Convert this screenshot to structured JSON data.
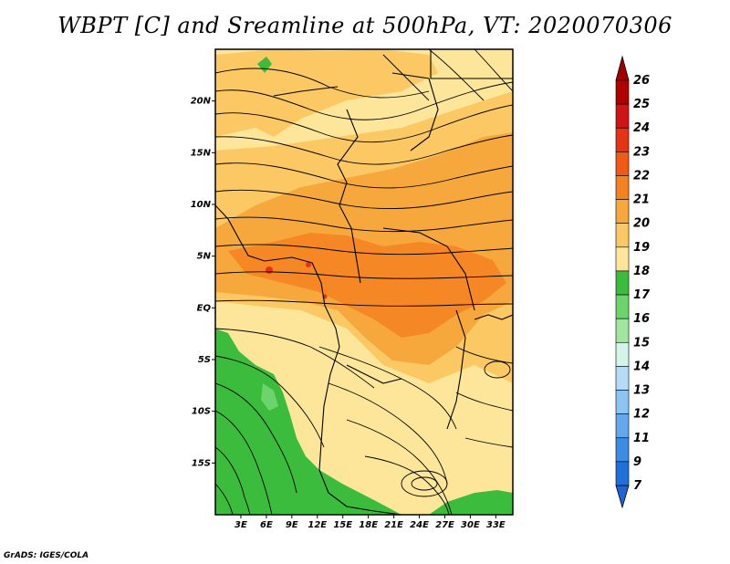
{
  "title": "WBPT [C] and Sreamline at 500hPa, VT: 2020070306",
  "credit": "GrADS: IGES/COLA",
  "map": {
    "lon_range": [
      0,
      35
    ],
    "lat_range": [
      -20,
      25
    ],
    "lat_ticks": [
      {
        "value": 20,
        "label": "20N"
      },
      {
        "value": 15,
        "label": "15N"
      },
      {
        "value": 10,
        "label": "10N"
      },
      {
        "value": 5,
        "label": "5N"
      },
      {
        "value": 0,
        "label": "EQ"
      },
      {
        "value": -5,
        "label": "5S"
      },
      {
        "value": -10,
        "label": "10S"
      },
      {
        "value": -15,
        "label": "15S"
      }
    ],
    "lon_ticks": [
      {
        "value": 3,
        "label": "3E"
      },
      {
        "value": 6,
        "label": "6E"
      },
      {
        "value": 9,
        "label": "9E"
      },
      {
        "value": 12,
        "label": "12E"
      },
      {
        "value": 15,
        "label": "15E"
      },
      {
        "value": 18,
        "label": "18E"
      },
      {
        "value": 21,
        "label": "21E"
      },
      {
        "value": 24,
        "label": "24E"
      },
      {
        "value": 27,
        "label": "27E"
      },
      {
        "value": 30,
        "label": "30E"
      },
      {
        "value": 33,
        "label": "33E"
      }
    ]
  },
  "colorbar": {
    "labels": [
      "26",
      "25",
      "24",
      "23",
      "22",
      "21",
      "20",
      "19",
      "18",
      "17",
      "16",
      "15",
      "14",
      "13",
      "12",
      "11",
      "9",
      "7"
    ],
    "colors": [
      "#b00000",
      "#d01414",
      "#e83214",
      "#f05a14",
      "#f58220",
      "#f7a83c",
      "#fcc864",
      "#fde69a",
      "#3cbc3c",
      "#6cd46c",
      "#a0e6a0",
      "#d4f4e8",
      "#b4dcf8",
      "#8cc4f4",
      "#64a8ec",
      "#3c8ce4",
      "#2070dc"
    ],
    "top_arrow_color": "#a00000",
    "bottom_arrow_color": "#1e64d8"
  }
}
